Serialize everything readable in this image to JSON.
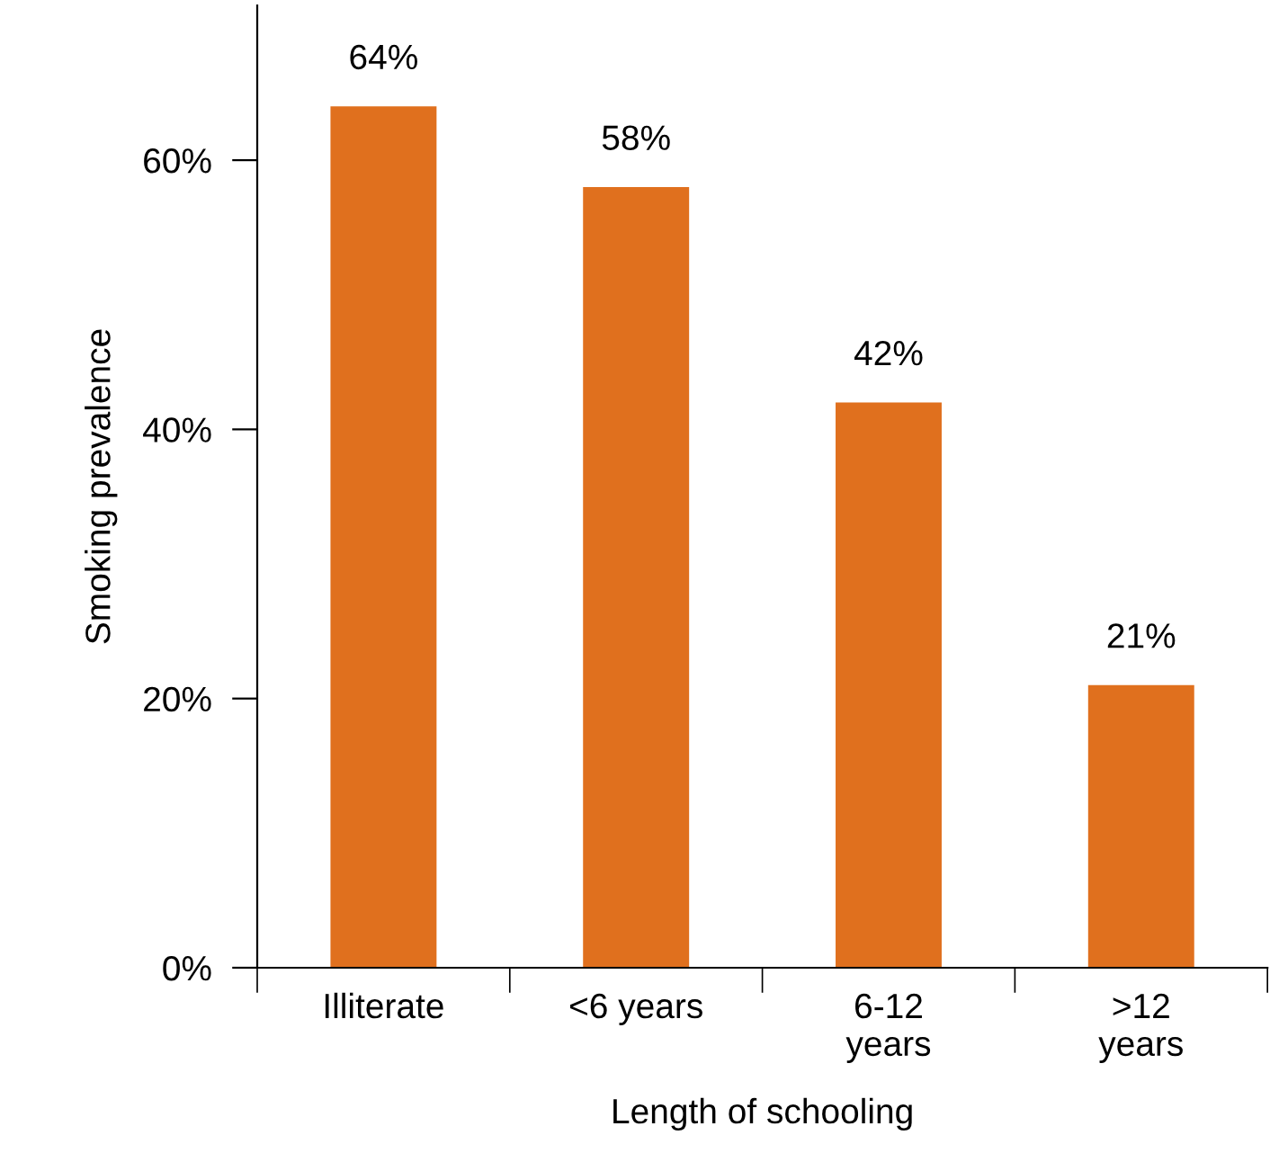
{
  "chart_data": {
    "type": "bar",
    "xlabel": "Length of schooling",
    "ylabel": "Smoking prevalence",
    "categories": [
      "Illiterate",
      "<6 years",
      "6-12\nyears",
      ">12\nyears"
    ],
    "values": [
      64,
      58,
      42,
      21
    ],
    "value_labels": [
      "64%",
      "58%",
      "42%",
      "21%"
    ],
    "color": "#e0701e",
    "ylim": [
      0,
      71.5
    ],
    "yticks": [
      {
        "value": 0,
        "label": "0%"
      },
      {
        "value": 20,
        "label": "20%"
      },
      {
        "value": 40,
        "label": "40%"
      },
      {
        "value": 60,
        "label": "60%"
      }
    ],
    "grid": false,
    "legend": false
  }
}
